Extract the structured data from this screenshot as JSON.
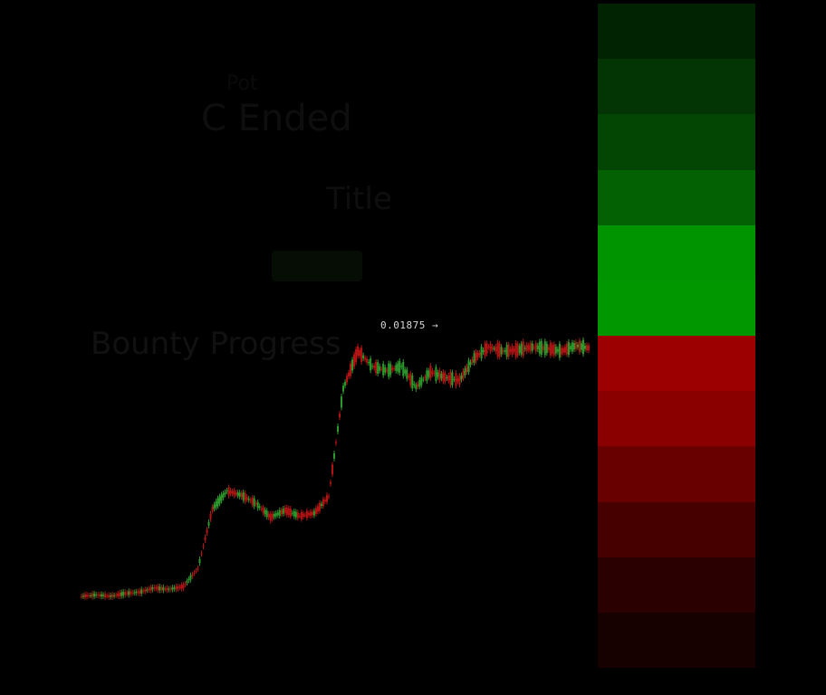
{
  "overlay": {
    "label_top": "Pot",
    "headline": "C Ended",
    "subtitle": "Title",
    "button_label": "",
    "bounty_title": "Bounty Progress",
    "bounty_sub": ""
  },
  "price_marker": {
    "label": "0.01875 →"
  },
  "colors": {
    "background": "#000000",
    "up_candle": "#2e9a2e",
    "down_candle": "#b31515",
    "heat": [
      "#022302",
      "#033403",
      "#034503",
      "#036103",
      "#009400",
      "#009700",
      "#9c0000",
      "#8a0000",
      "#680000",
      "#470000",
      "#2a0000",
      "#160000"
    ]
  },
  "chart_data": {
    "type": "line",
    "title": "",
    "xlabel": "",
    "ylabel": "",
    "x": [
      0,
      4,
      8,
      12,
      16,
      20,
      24,
      28,
      32,
      36,
      40,
      44,
      48,
      52,
      56,
      60,
      64,
      68,
      72,
      76,
      80,
      84,
      88,
      92,
      96,
      100,
      104,
      108,
      112,
      116,
      120,
      124,
      128,
      132,
      136,
      140
    ],
    "y": [
      0.0006,
      0.0007,
      0.0006,
      0.0008,
      0.0009,
      0.0012,
      0.0011,
      0.0013,
      0.0026,
      0.0069,
      0.0082,
      0.0079,
      0.0073,
      0.0063,
      0.0068,
      0.0064,
      0.0066,
      0.0078,
      0.0156,
      0.0183,
      0.0172,
      0.0169,
      0.0172,
      0.0157,
      0.0168,
      0.0164,
      0.0162,
      0.0178,
      0.0186,
      0.0183,
      0.0184,
      0.0186,
      0.0185,
      0.0183,
      0.0187,
      0.0185
    ],
    "xlim": [
      0,
      140
    ],
    "ylim": [
      0,
      0.02
    ],
    "grid": false
  }
}
